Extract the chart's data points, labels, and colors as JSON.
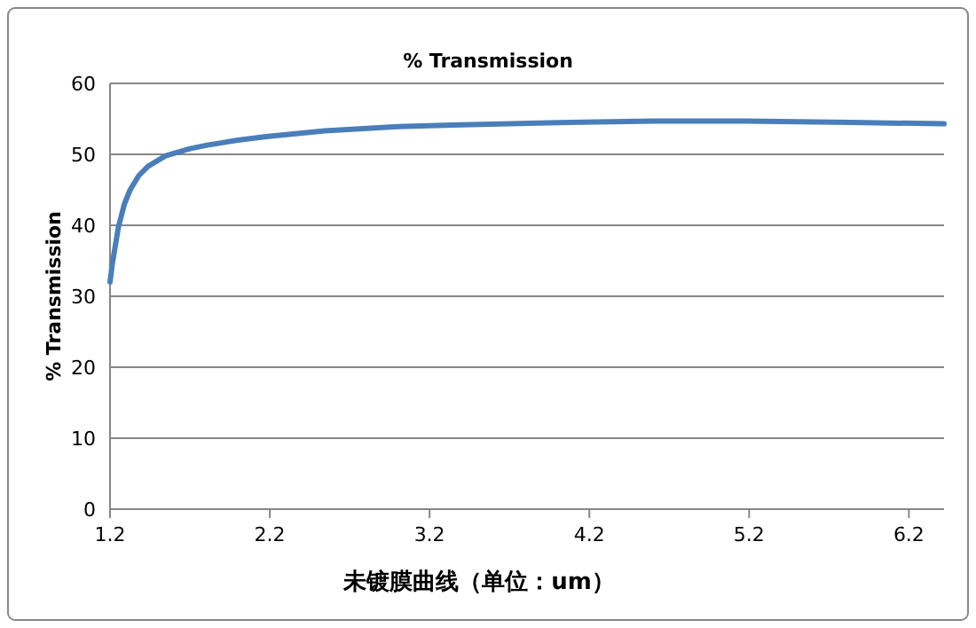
{
  "chart_data": {
    "type": "line",
    "title": "% Transmission",
    "xlabel": "未镀膜曲线（单位：um）",
    "ylabel": "% Transmission",
    "xlim": [
      1.2,
      6.42
    ],
    "xticks": [
      1.2,
      2.2,
      3.2,
      4.2,
      5.2,
      6.2
    ],
    "ylim": [
      0,
      60
    ],
    "yticks": [
      0,
      10,
      20,
      30,
      40,
      50,
      60
    ],
    "grid": "y",
    "x": [
      1.2,
      1.214,
      1.252,
      1.29,
      1.326,
      1.38,
      1.437,
      1.548,
      1.7,
      1.808,
      2.0,
      2.178,
      2.544,
      3.0,
      3.289,
      4.07,
      4.6,
      5.18,
      5.84,
      6.42
    ],
    "series": [
      {
        "color": "#4a7ebb",
        "values": [
          32,
          34.5,
          39.7,
          43,
          45,
          47,
          48.3,
          49.8,
          50.8,
          51.3,
          52,
          52.5,
          53.3,
          53.9,
          54.1,
          54.5,
          54.7,
          54.7,
          54.5,
          54.3
        ]
      }
    ]
  }
}
